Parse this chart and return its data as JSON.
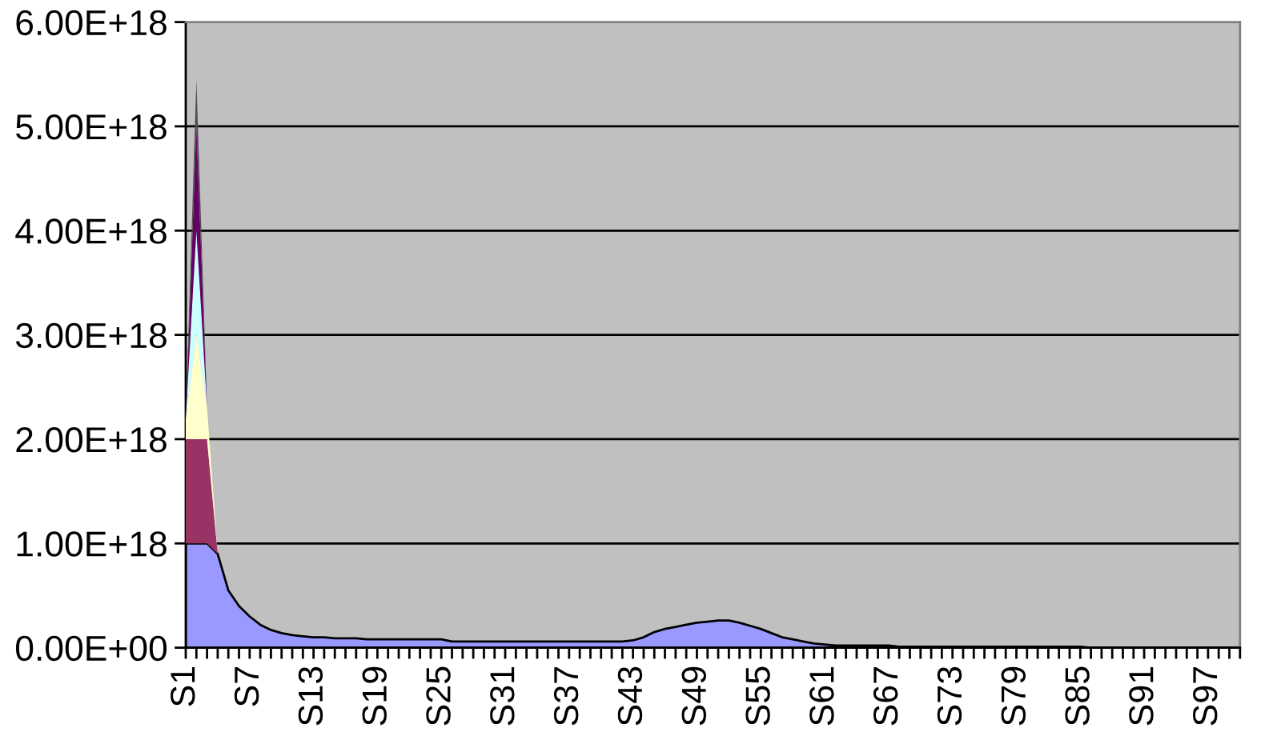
{
  "chart_data": {
    "type": "area",
    "stacked": true,
    "categories": [
      "S1",
      null,
      null,
      null,
      null,
      null,
      "S7",
      null,
      null,
      null,
      null,
      null,
      "S13",
      null,
      null,
      null,
      null,
      null,
      "S19",
      null,
      null,
      null,
      null,
      null,
      "S25",
      null,
      null,
      null,
      null,
      null,
      "S31",
      null,
      null,
      null,
      null,
      null,
      "S37",
      null,
      null,
      null,
      null,
      null,
      "S43",
      null,
      null,
      null,
      null,
      null,
      "S49",
      null,
      null,
      null,
      null,
      null,
      "S55",
      null,
      null,
      null,
      null,
      null,
      "S61",
      null,
      null,
      null,
      null,
      null,
      "S67",
      null,
      null,
      null,
      null,
      null,
      "S73",
      null,
      null,
      null,
      null,
      null,
      "S79",
      null,
      null,
      null,
      null,
      null,
      "S85",
      null,
      null,
      null,
      null,
      null,
      "S91",
      null,
      null,
      null,
      null,
      null,
      "S97",
      null,
      null,
      null
    ],
    "series": [
      {
        "color": "#9999ff",
        "values": [
          1e+18,
          1e+18,
          1e+18,
          9e+17,
          5.5e+17,
          4e+17,
          3e+17,
          2.2e+17,
          1.7e+17,
          1.4e+17,
          1.2e+17,
          1.1e+17,
          1e+17,
          1e+17,
          9e+16,
          9e+16,
          9e+16,
          8e+16,
          8e+16,
          8e+16,
          8e+16,
          8e+16,
          8e+16,
          8e+16,
          8e+16,
          6e+16,
          6e+16,
          6e+16,
          6e+16,
          6e+16,
          6e+16,
          6e+16,
          6e+16,
          6e+16,
          6e+16,
          6e+16,
          6e+16,
          6e+16,
          6e+16,
          6e+16,
          6e+16,
          6e+16,
          7e+16,
          1e+17,
          1.5e+17,
          1.8e+17,
          2e+17,
          2.2e+17,
          2.4e+17,
          2.5e+17,
          2.6e+17,
          2.6e+17,
          2.4e+17,
          2.1e+17,
          1.8e+17,
          1.4e+17,
          1e+17,
          8e+16,
          6e+16,
          4e+16,
          3e+16,
          2e+16,
          2e+16,
          2e+16,
          2e+16,
          2e+16,
          2e+16,
          1e+16,
          1e+16,
          1e+16,
          1e+16,
          1e+16,
          1e+16,
          1e+16,
          1e+16,
          1e+16,
          1e+16,
          1e+16,
          1e+16,
          1e+16,
          1e+16,
          1e+16,
          1e+16,
          1e+16,
          1e+16,
          0,
          0,
          0,
          0,
          0,
          0,
          0,
          0,
          0,
          0,
          0,
          0,
          0,
          0,
          0
        ]
      },
      {
        "color": "#993366",
        "values": [
          1e+18,
          1e+18,
          1e+18,
          0,
          0,
          0,
          0,
          0,
          0,
          0,
          0,
          0,
          0,
          0,
          0,
          0,
          0,
          0,
          0,
          0,
          0,
          0,
          0,
          0,
          0,
          0,
          0,
          0,
          0,
          0,
          0,
          0,
          0,
          0,
          0,
          0,
          0,
          0,
          0,
          0,
          0,
          0,
          0,
          0,
          0,
          0,
          0,
          0,
          0,
          0,
          0,
          0,
          0,
          0,
          0,
          0,
          0,
          0,
          0,
          0,
          0,
          0,
          0,
          0,
          0,
          0,
          0,
          0,
          0,
          0,
          0,
          0,
          0,
          0,
          0,
          0,
          0,
          0,
          0,
          0,
          0,
          0,
          0,
          0,
          0,
          0,
          0,
          0,
          0,
          0,
          0,
          0,
          0,
          0,
          0,
          0,
          0,
          0,
          0,
          0
        ]
      },
      {
        "color": "#ffffcc",
        "values": [
          2e+17,
          1e+18,
          3e+17,
          0,
          0,
          0,
          0,
          0,
          0,
          0,
          0,
          0,
          0,
          0,
          0,
          0,
          0,
          0,
          0,
          0,
          0,
          0,
          0,
          0,
          0,
          0,
          0,
          0,
          0,
          0,
          0,
          0,
          0,
          0,
          0,
          0,
          0,
          0,
          0,
          0,
          0,
          0,
          0,
          0,
          0,
          0,
          0,
          0,
          0,
          0,
          0,
          0,
          0,
          0,
          0,
          0,
          0,
          0,
          0,
          0,
          0,
          0,
          0,
          0,
          0,
          0,
          0,
          0,
          0,
          0,
          0,
          0,
          0,
          0,
          0,
          0,
          0,
          0,
          0,
          0,
          0,
          0,
          0,
          0,
          0,
          0,
          0,
          0,
          0,
          0,
          0,
          0,
          0,
          0,
          0,
          0,
          0,
          0,
          0,
          0
        ]
      },
      {
        "color": "#ccffff",
        "values": [
          0,
          1e+18,
          0,
          0,
          0,
          0,
          0,
          0,
          0,
          0,
          0,
          0,
          0,
          0,
          0,
          0,
          0,
          0,
          0,
          0,
          0,
          0,
          0,
          0,
          0,
          0,
          0,
          0,
          0,
          0,
          0,
          0,
          0,
          0,
          0,
          0,
          0,
          0,
          0,
          0,
          0,
          0,
          0,
          0,
          0,
          0,
          0,
          0,
          0,
          0,
          0,
          0,
          0,
          0,
          0,
          0,
          0,
          0,
          0,
          0,
          0,
          0,
          0,
          0,
          0,
          0,
          0,
          0,
          0,
          0,
          0,
          0,
          0,
          0,
          0,
          0,
          0,
          0,
          0,
          0,
          0,
          0,
          0,
          0,
          0,
          0,
          0,
          0,
          0,
          0,
          0,
          0,
          0,
          0,
          0,
          0,
          0,
          0,
          0,
          0
        ]
      },
      {
        "color": "#660066",
        "values": [
          0,
          1e+18,
          0,
          0,
          0,
          0,
          0,
          0,
          0,
          0,
          0,
          0,
          0,
          0,
          0,
          0,
          0,
          0,
          0,
          0,
          0,
          0,
          0,
          0,
          0,
          0,
          0,
          0,
          0,
          0,
          0,
          0,
          0,
          0,
          0,
          0,
          0,
          0,
          0,
          0,
          0,
          0,
          0,
          0,
          0,
          0,
          0,
          0,
          0,
          0,
          0,
          0,
          0,
          0,
          0,
          0,
          0,
          0,
          0,
          0,
          0,
          0,
          0,
          0,
          0,
          0,
          0,
          0,
          0,
          0,
          0,
          0,
          0,
          0,
          0,
          0,
          0,
          0,
          0,
          0,
          0,
          0,
          0,
          0,
          0,
          0,
          0,
          0,
          0,
          0,
          0,
          0,
          0,
          0,
          0,
          0,
          0,
          0,
          0,
          0
        ]
      },
      {
        "color": "#4d4d4d",
        "values": [
          0,
          4.5e+17,
          0,
          0,
          0,
          0,
          0,
          0,
          0,
          0,
          0,
          0,
          0,
          0,
          0,
          0,
          0,
          0,
          0,
          0,
          0,
          0,
          0,
          0,
          0,
          0,
          0,
          0,
          0,
          0,
          0,
          0,
          0,
          0,
          0,
          0,
          0,
          0,
          0,
          0,
          0,
          0,
          0,
          0,
          0,
          0,
          0,
          0,
          0,
          0,
          0,
          0,
          0,
          0,
          0,
          0,
          0,
          0,
          0,
          0,
          0,
          0,
          0,
          0,
          0,
          0,
          0,
          0,
          0,
          0,
          0,
          0,
          0,
          0,
          0,
          0,
          0,
          0,
          0,
          0,
          0,
          0,
          0,
          0,
          0,
          0,
          0,
          0,
          0,
          0,
          0,
          0,
          0,
          0,
          0,
          0,
          0,
          0,
          0,
          0
        ]
      }
    ],
    "ylim": [
      0,
      6e+18
    ],
    "yticks": [
      {
        "value": 0,
        "label": "0.00E+00"
      },
      {
        "value": 1e+18,
        "label": "1.00E+18"
      },
      {
        "value": 2e+18,
        "label": "2.00E+18"
      },
      {
        "value": 3e+18,
        "label": "3.00E+18"
      },
      {
        "value": 4e+18,
        "label": "4.00E+18"
      },
      {
        "value": 5e+18,
        "label": "5.00E+18"
      },
      {
        "value": 6e+18,
        "label": "6.00E+18"
      }
    ],
    "grid": "y"
  }
}
